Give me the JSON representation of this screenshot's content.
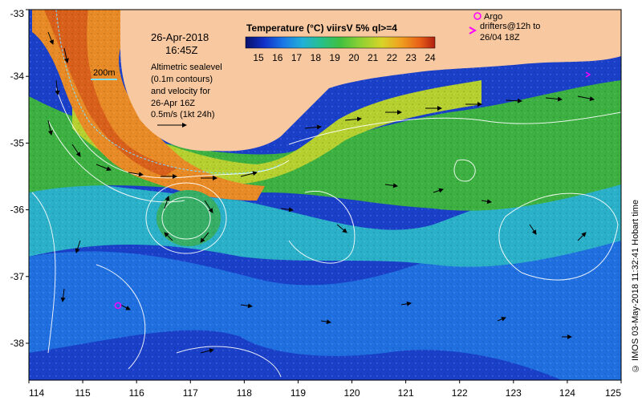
{
  "map": {
    "date_label": "26-Apr-2018",
    "time_label": "16:45Z",
    "depth_contour_label": "200m",
    "altimetry_note": [
      "Altimetric sealevel",
      "(0.1m contours)",
      "and velocity for",
      "26-Apr 16Z",
      "0.5m/s (1kt 24h)"
    ],
    "legend_argo": "Argo",
    "legend_drifters": [
      "drifters@12h to",
      "26/04 18Z"
    ],
    "credit": "© IMOS 03-May-2018 11:32:41 Hobart time",
    "lon_ticks": [
      "114",
      "115",
      "116",
      "117",
      "118",
      "119",
      "120",
      "121",
      "122",
      "123",
      "124",
      "125"
    ],
    "lat_ticks": [
      "-33",
      "-34",
      "-35",
      "-36",
      "-37",
      "-38"
    ],
    "colors": {
      "land": "#f8c8a0",
      "warm": "#e87f1f",
      "mid": "#3cb040",
      "cool": "#1e7fe0",
      "cold": "#1a2fb0",
      "argo": "#ff00ff"
    }
  },
  "colorbar": {
    "title": "Temperature (°C) viirsV 5% ql>=4",
    "ticks": [
      "15",
      "16",
      "17",
      "18",
      "19",
      "20",
      "21",
      "22",
      "23",
      "24"
    ],
    "colors": [
      "#08106a",
      "#1030c8",
      "#1a78e6",
      "#22b0d8",
      "#26c08a",
      "#40c040",
      "#8ad034",
      "#d8d428",
      "#f0a020",
      "#e86018",
      "#b02010"
    ]
  }
}
